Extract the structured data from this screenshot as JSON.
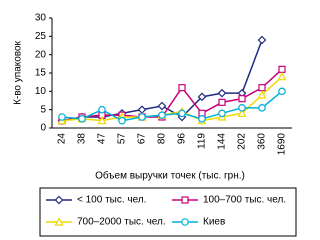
{
  "chart_data": {
    "type": "line",
    "y_label": "К-во упаковок",
    "x_label": "Объем выручки точек (тыс. грн.)",
    "categories": [
      "24",
      "38",
      "47",
      "57",
      "67",
      "80",
      "96",
      "119",
      "144",
      "202",
      "360",
      "1690"
    ],
    "series": [
      {
        "name": "< 100 тыс. чел.",
        "color": "#1f2a80",
        "marker": "diamond",
        "values": [
          2,
          3,
          3,
          4,
          5,
          6,
          3,
          8.5,
          9.5,
          9.5,
          24,
          null
        ]
      },
      {
        "name": "100–700 тыс. чел.",
        "color": "#c8007a",
        "marker": "square",
        "values": [
          2,
          3,
          3.5,
          3.5,
          3,
          3,
          11,
          4,
          7,
          8,
          11,
          16
        ]
      },
      {
        "name": "700–2000 тыс. чел.",
        "color": "#f0d800",
        "marker": "triangle",
        "values": [
          2,
          2.5,
          2,
          3,
          3,
          3.5,
          4.5,
          2,
          3,
          4,
          9,
          14
        ]
      },
      {
        "name": "Киев",
        "color": "#00b0d8",
        "marker": "circle",
        "values": [
          3,
          2.5,
          5,
          2,
          3,
          3.5,
          4,
          2.5,
          4,
          5.5,
          5.5,
          10
        ]
      }
    ],
    "ylim": [
      0,
      30
    ],
    "yticks": [
      0,
      5,
      10,
      15,
      20,
      25,
      30
    ],
    "grid": false
  }
}
